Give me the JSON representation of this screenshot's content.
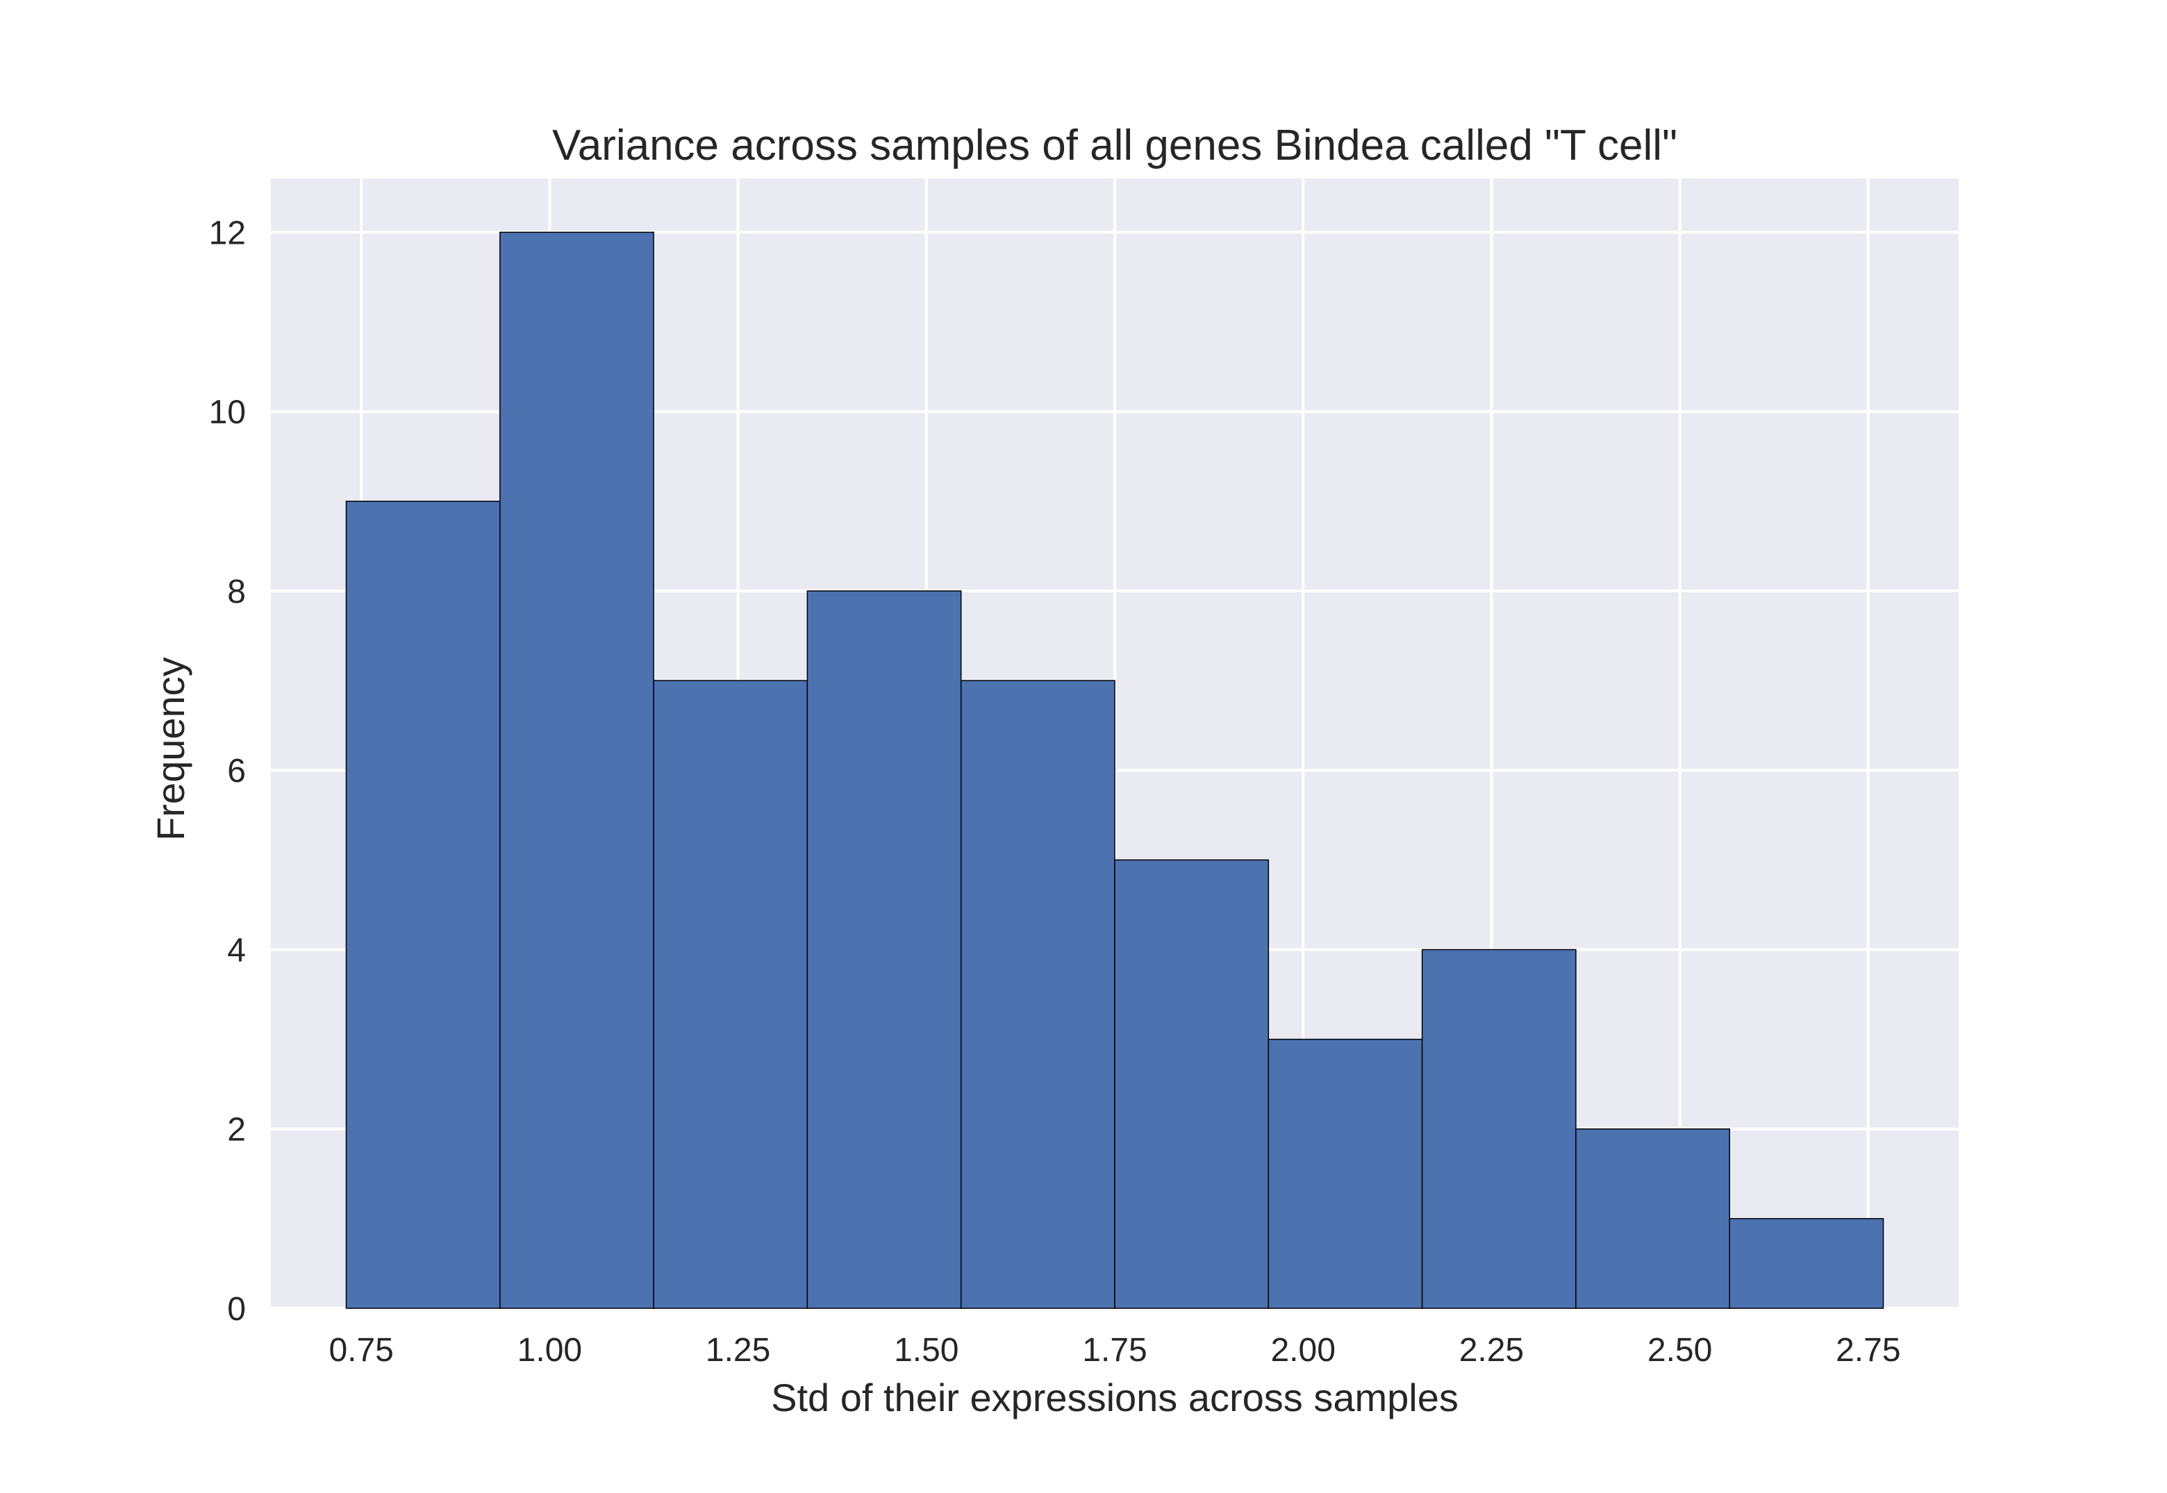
{
  "chart_data": {
    "type": "bar",
    "title": "Variance across samples of all genes Bindea called \"T cell\"",
    "xlabel": "Std of their expressions across samples",
    "ylabel": "Frequency",
    "bin_edges": [
      0.73,
      0.934,
      1.138,
      1.342,
      1.546,
      1.75,
      1.954,
      2.158,
      2.362,
      2.566,
      2.77
    ],
    "values": [
      9,
      12,
      7,
      8,
      7,
      5,
      3,
      4,
      2,
      1
    ],
    "xlim": [
      0.63,
      2.87
    ],
    "ylim": [
      0,
      12.6
    ],
    "xticks": [
      0.75,
      1.0,
      1.25,
      1.5,
      1.75,
      2.0,
      2.25,
      2.5,
      2.75
    ],
    "xtick_labels": [
      "0.75",
      "1.00",
      "1.25",
      "1.50",
      "1.75",
      "2.00",
      "2.25",
      "2.50",
      "2.75"
    ],
    "yticks": [
      0,
      2,
      4,
      6,
      8,
      10,
      12
    ],
    "ytick_labels": [
      "0",
      "2",
      "4",
      "6",
      "8",
      "10",
      "12"
    ],
    "grid": true,
    "legend": "none",
    "colors": {
      "bar_fill": "#4c72b0",
      "bar_edge": "#000000",
      "plot_background": "#eaeaf2",
      "grid": "#ffffff",
      "text": "#262626"
    }
  }
}
